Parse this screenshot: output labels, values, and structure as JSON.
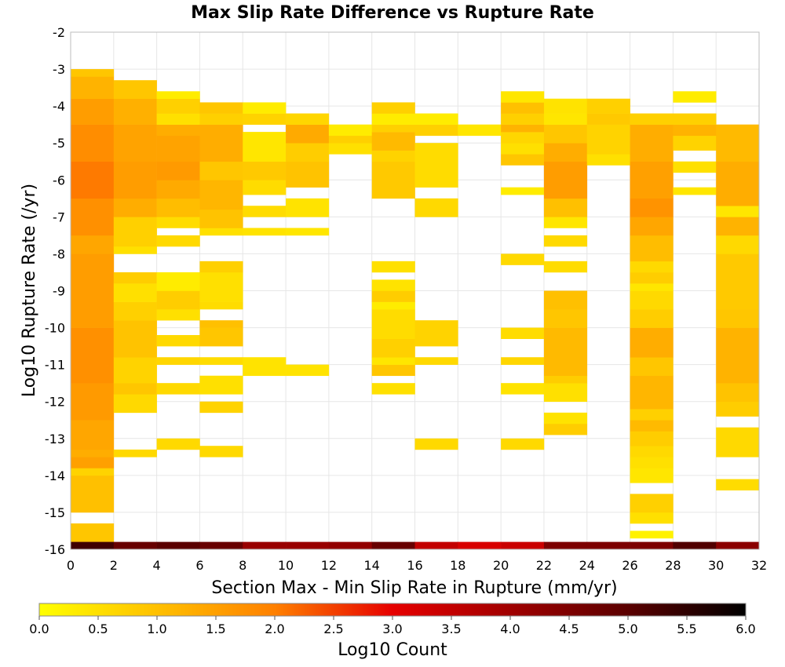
{
  "chart_data": {
    "type": "heatmap",
    "title": "Max Slip Rate Difference vs Rupture Rate",
    "xlabel": "Section Max - Min Slip Rate in Rupture (mm/yr)",
    "ylabel": "Log10 Rupture Rate (/yr)",
    "xlim": [
      0,
      32
    ],
    "ylim": [
      -16,
      -2
    ],
    "x_ticks": [
      0,
      2,
      4,
      6,
      8,
      10,
      12,
      14,
      16,
      18,
      20,
      22,
      24,
      26,
      28,
      30,
      32
    ],
    "y_ticks": [
      -2,
      -3,
      -4,
      -5,
      -6,
      -7,
      -8,
      -9,
      -10,
      -11,
      -12,
      -13,
      -14,
      -15,
      -16
    ],
    "grid": true,
    "x_bin_width": 2,
    "y_bin_height": 0.25,
    "colorbar": {
      "label": "Log10 Count",
      "min": 0.0,
      "max": 6.0,
      "ticks": [
        "0.0",
        "0.5",
        "1.0",
        "1.5",
        "2.0",
        "2.5",
        "3.0",
        "3.5",
        "4.0",
        "4.5",
        "5.0",
        "5.5",
        "6.0"
      ],
      "stops": [
        {
          "v": 0.0,
          "color": "#ffff00"
        },
        {
          "v": 1.0,
          "color": "#ffc000"
        },
        {
          "v": 2.0,
          "color": "#ff8000"
        },
        {
          "v": 3.0,
          "color": "#e60000"
        },
        {
          "v": 4.0,
          "color": "#a00000"
        },
        {
          "v": 5.0,
          "color": "#5a0000"
        },
        {
          "v": 6.0,
          "color": "#000000"
        }
      ]
    },
    "columns": [
      {
        "x0": 0,
        "runs": [
          {
            "y0": -15.8,
            "y1": -15.3,
            "v": 0.9
          },
          {
            "y0": -15.0,
            "y1": -14.0,
            "v": 1.0
          },
          {
            "y0": -14.0,
            "y1": -13.8,
            "v": 0.7
          },
          {
            "y0": -13.8,
            "y1": -13.5,
            "v": 1.5
          },
          {
            "y0": -13.5,
            "y1": -13.3,
            "v": 1.3
          },
          {
            "y0": -13.3,
            "y1": -12.5,
            "v": 1.4
          },
          {
            "y0": -12.5,
            "y1": -11.5,
            "v": 1.6
          },
          {
            "y0": -11.5,
            "y1": -10.0,
            "v": 1.75
          },
          {
            "y0": -10.0,
            "y1": -8.0,
            "v": 1.55
          },
          {
            "y0": -8.0,
            "y1": -7.5,
            "v": 1.4
          },
          {
            "y0": -7.5,
            "y1": -6.5,
            "v": 1.75
          },
          {
            "y0": -6.5,
            "y1": -5.5,
            "v": 2.05
          },
          {
            "y0": -5.5,
            "y1": -4.5,
            "v": 1.8
          },
          {
            "y0": -4.5,
            "y1": -3.8,
            "v": 1.55
          },
          {
            "y0": -3.8,
            "y1": -3.2,
            "v": 1.2
          },
          {
            "y0": -3.2,
            "y1": -3.0,
            "v": 0.9
          }
        ]
      },
      {
        "x0": 2,
        "runs": [
          {
            "y0": -13.5,
            "y1": -13.3,
            "v": 0.6
          },
          {
            "y0": -12.3,
            "y1": -11.8,
            "v": 0.6
          },
          {
            "y0": -11.8,
            "y1": -11.5,
            "v": 0.9
          },
          {
            "y0": -11.5,
            "y1": -10.8,
            "v": 0.7
          },
          {
            "y0": -10.8,
            "y1": -9.8,
            "v": 0.95
          },
          {
            "y0": -9.8,
            "y1": -9.3,
            "v": 0.75
          },
          {
            "y0": -9.3,
            "y1": -8.8,
            "v": 0.5
          },
          {
            "y0": -8.8,
            "y1": -8.5,
            "v": 0.8
          },
          {
            "y0": -8.0,
            "y1": -7.8,
            "v": 0.5
          },
          {
            "y0": -7.8,
            "y1": -7.0,
            "v": 0.75
          },
          {
            "y0": -7.0,
            "y1": -6.5,
            "v": 1.3
          },
          {
            "y0": -6.5,
            "y1": -5.5,
            "v": 1.55
          },
          {
            "y0": -5.5,
            "y1": -4.5,
            "v": 1.45
          },
          {
            "y0": -4.5,
            "y1": -3.8,
            "v": 1.25
          },
          {
            "y0": -3.8,
            "y1": -3.3,
            "v": 0.9
          }
        ]
      },
      {
        "x0": 4,
        "runs": [
          {
            "y0": -13.3,
            "y1": -13.0,
            "v": 0.6
          },
          {
            "y0": -11.8,
            "y1": -11.5,
            "v": 0.6
          },
          {
            "y0": -11.0,
            "y1": -10.8,
            "v": 0.65
          },
          {
            "y0": -10.5,
            "y1": -10.2,
            "v": 0.6
          },
          {
            "y0": -9.8,
            "y1": -9.5,
            "v": 0.5
          },
          {
            "y0": -9.5,
            "y1": -9.0,
            "v": 0.8
          },
          {
            "y0": -9.0,
            "y1": -8.5,
            "v": 0.3
          },
          {
            "y0": -7.8,
            "y1": -7.5,
            "v": 0.6
          },
          {
            "y0": -7.3,
            "y1": -7.0,
            "v": 0.55
          },
          {
            "y0": -7.0,
            "y1": -6.5,
            "v": 1.05
          },
          {
            "y0": -6.5,
            "y1": -6.0,
            "v": 1.35
          },
          {
            "y0": -6.0,
            "y1": -5.5,
            "v": 1.6
          },
          {
            "y0": -5.5,
            "y1": -4.8,
            "v": 1.45
          },
          {
            "y0": -4.8,
            "y1": -4.5,
            "v": 1.3
          },
          {
            "y0": -4.5,
            "y1": -4.2,
            "v": 0.5
          },
          {
            "y0": -4.2,
            "y1": -3.8,
            "v": 0.75
          },
          {
            "y0": -3.8,
            "y1": -3.6,
            "v": 0.3
          }
        ]
      },
      {
        "x0": 6,
        "runs": [
          {
            "y0": -13.5,
            "y1": -13.2,
            "v": 0.6
          },
          {
            "y0": -12.3,
            "y1": -12.0,
            "v": 0.7
          },
          {
            "y0": -11.8,
            "y1": -11.3,
            "v": 0.5
          },
          {
            "y0": -11.0,
            "y1": -10.8,
            "v": 0.55
          },
          {
            "y0": -10.5,
            "y1": -10.0,
            "v": 0.9
          },
          {
            "y0": -10.0,
            "y1": -9.8,
            "v": 1.0
          },
          {
            "y0": -9.5,
            "y1": -9.3,
            "v": 0.55
          },
          {
            "y0": -9.3,
            "y1": -8.5,
            "v": 0.5
          },
          {
            "y0": -8.5,
            "y1": -8.2,
            "v": 0.75
          },
          {
            "y0": -7.5,
            "y1": -7.3,
            "v": 0.5
          },
          {
            "y0": -7.3,
            "y1": -6.8,
            "v": 0.95
          },
          {
            "y0": -6.8,
            "y1": -6.0,
            "v": 1.15
          },
          {
            "y0": -6.0,
            "y1": -5.5,
            "v": 0.9
          },
          {
            "y0": -5.5,
            "y1": -4.5,
            "v": 1.3
          },
          {
            "y0": -4.5,
            "y1": -4.2,
            "v": 0.75
          },
          {
            "y0": -4.2,
            "y1": -3.9,
            "v": 0.9
          }
        ]
      },
      {
        "x0": 8,
        "runs": [
          {
            "y0": -11.3,
            "y1": -10.8,
            "v": 0.45
          },
          {
            "y0": -7.5,
            "y1": -7.3,
            "v": 0.45
          },
          {
            "y0": -7.0,
            "y1": -6.7,
            "v": 0.55
          },
          {
            "y0": -6.4,
            "y1": -6.0,
            "v": 0.55
          },
          {
            "y0": -6.0,
            "y1": -5.5,
            "v": 0.85
          },
          {
            "y0": -5.5,
            "y1": -4.7,
            "v": 0.4
          },
          {
            "y0": -4.5,
            "y1": -4.2,
            "v": 0.7
          },
          {
            "y0": -4.2,
            "y1": -3.9,
            "v": 0.3
          }
        ]
      },
      {
        "x0": 10,
        "runs": [
          {
            "y0": -11.3,
            "y1": -11.0,
            "v": 0.45
          },
          {
            "y0": -7.5,
            "y1": -7.3,
            "v": 0.4
          },
          {
            "y0": -7.0,
            "y1": -6.5,
            "v": 0.45
          },
          {
            "y0": -6.2,
            "y1": -5.5,
            "v": 0.95
          },
          {
            "y0": -5.5,
            "y1": -5.0,
            "v": 0.8
          },
          {
            "y0": -5.0,
            "y1": -4.5,
            "v": 1.35
          },
          {
            "y0": -4.5,
            "y1": -4.2,
            "v": 0.65
          }
        ]
      },
      {
        "x0": 12,
        "runs": [
          {
            "y0": -5.3,
            "y1": -5.0,
            "v": 0.5
          },
          {
            "y0": -5.0,
            "y1": -4.8,
            "v": 0.75
          },
          {
            "y0": -4.8,
            "y1": -4.5,
            "v": 0.3
          }
        ]
      },
      {
        "x0": 14,
        "runs": [
          {
            "y0": -11.8,
            "y1": -11.5,
            "v": 0.5
          },
          {
            "y0": -11.3,
            "y1": -11.0,
            "v": 0.9
          },
          {
            "y0": -11.0,
            "y1": -10.8,
            "v": 0.4
          },
          {
            "y0": -10.8,
            "y1": -10.3,
            "v": 0.75
          },
          {
            "y0": -10.3,
            "y1": -9.5,
            "v": 0.55
          },
          {
            "y0": -9.5,
            "y1": -9.3,
            "v": 0.3
          },
          {
            "y0": -9.3,
            "y1": -9.0,
            "v": 0.8
          },
          {
            "y0": -9.0,
            "y1": -8.7,
            "v": 0.45
          },
          {
            "y0": -8.5,
            "y1": -8.2,
            "v": 0.5
          },
          {
            "y0": -6.5,
            "y1": -5.5,
            "v": 0.85
          },
          {
            "y0": -5.5,
            "y1": -5.2,
            "v": 0.7
          },
          {
            "y0": -5.2,
            "y1": -4.7,
            "v": 1.1
          },
          {
            "y0": -4.7,
            "y1": -4.5,
            "v": 0.75
          },
          {
            "y0": -4.5,
            "y1": -4.2,
            "v": 0.3
          },
          {
            "y0": -4.2,
            "y1": -3.9,
            "v": 0.75
          }
        ]
      },
      {
        "x0": 16,
        "runs": [
          {
            "y0": -13.3,
            "y1": -13.0,
            "v": 0.6
          },
          {
            "y0": -11.0,
            "y1": -10.8,
            "v": 0.6
          },
          {
            "y0": -10.5,
            "y1": -9.8,
            "v": 0.7
          },
          {
            "y0": -7.0,
            "y1": -6.5,
            "v": 0.6
          },
          {
            "y0": -6.2,
            "y1": -5.0,
            "v": 0.55
          },
          {
            "y0": -4.8,
            "y1": -4.5,
            "v": 0.75
          },
          {
            "y0": -4.5,
            "y1": -4.2,
            "v": 0.3
          }
        ]
      },
      {
        "x0": 18,
        "runs": [
          {
            "y0": -4.8,
            "y1": -4.5,
            "v": 0.4
          }
        ]
      },
      {
        "x0": 20,
        "runs": [
          {
            "y0": -13.3,
            "y1": -13.0,
            "v": 0.6
          },
          {
            "y0": -11.8,
            "y1": -11.5,
            "v": 0.45
          },
          {
            "y0": -11.0,
            "y1": -10.8,
            "v": 0.65
          },
          {
            "y0": -10.3,
            "y1": -10.0,
            "v": 0.55
          },
          {
            "y0": -8.3,
            "y1": -8.0,
            "v": 0.6
          },
          {
            "y0": -6.4,
            "y1": -6.2,
            "v": 0.3
          },
          {
            "y0": -5.6,
            "y1": -5.3,
            "v": 0.9
          },
          {
            "y0": -5.3,
            "y1": -5.0,
            "v": 0.5
          },
          {
            "y0": -5.0,
            "y1": -4.7,
            "v": 0.65
          },
          {
            "y0": -4.7,
            "y1": -4.5,
            "v": 1.2
          },
          {
            "y0": -4.5,
            "y1": -4.2,
            "v": 0.75
          },
          {
            "y0": -4.2,
            "y1": -3.9,
            "v": 1.0
          },
          {
            "y0": -3.9,
            "y1": -3.6,
            "v": 0.4
          }
        ]
      },
      {
        "x0": 22,
        "runs": [
          {
            "y0": -12.9,
            "y1": -12.6,
            "v": 0.8
          },
          {
            "y0": -12.6,
            "y1": -12.3,
            "v": 0.45
          },
          {
            "y0": -12.0,
            "y1": -11.5,
            "v": 0.5
          },
          {
            "y0": -11.5,
            "y1": -11.3,
            "v": 0.8
          },
          {
            "y0": -11.3,
            "y1": -10.0,
            "v": 1.1
          },
          {
            "y0": -10.0,
            "y1": -9.5,
            "v": 0.9
          },
          {
            "y0": -9.5,
            "y1": -9.0,
            "v": 1.0
          },
          {
            "y0": -8.5,
            "y1": -8.2,
            "v": 0.55
          },
          {
            "y0": -7.8,
            "y1": -7.5,
            "v": 0.6
          },
          {
            "y0": -7.3,
            "y1": -7.0,
            "v": 0.4
          },
          {
            "y0": -7.0,
            "y1": -6.5,
            "v": 1.0
          },
          {
            "y0": -6.5,
            "y1": -5.5,
            "v": 1.55
          },
          {
            "y0": -5.5,
            "y1": -5.0,
            "v": 1.3
          },
          {
            "y0": -5.0,
            "y1": -4.5,
            "v": 0.9
          },
          {
            "y0": -4.5,
            "y1": -4.2,
            "v": 0.4
          },
          {
            "y0": -4.2,
            "y1": -3.8,
            "v": 0.45
          }
        ]
      },
      {
        "x0": 24,
        "runs": [
          {
            "y0": -5.6,
            "y1": -5.3,
            "v": 0.5
          },
          {
            "y0": -5.3,
            "y1": -4.5,
            "v": 0.7
          },
          {
            "y0": -4.5,
            "y1": -4.2,
            "v": 0.85
          },
          {
            "y0": -4.2,
            "y1": -3.8,
            "v": 0.75
          }
        ]
      },
      {
        "x0": 26,
        "runs": [
          {
            "y0": -15.7,
            "y1": -15.5,
            "v": 0.2
          },
          {
            "y0": -15.3,
            "y1": -15.0,
            "v": 0.5
          },
          {
            "y0": -15.0,
            "y1": -14.5,
            "v": 0.75
          },
          {
            "y0": -14.2,
            "y1": -13.8,
            "v": 0.4
          },
          {
            "y0": -13.8,
            "y1": -13.5,
            "v": 0.5
          },
          {
            "y0": -13.5,
            "y1": -13.2,
            "v": 0.6
          },
          {
            "y0": -13.2,
            "y1": -12.8,
            "v": 0.8
          },
          {
            "y0": -12.8,
            "y1": -12.5,
            "v": 1.1
          },
          {
            "y0": -12.5,
            "y1": -12.2,
            "v": 0.75
          },
          {
            "y0": -12.2,
            "y1": -11.3,
            "v": 1.15
          },
          {
            "y0": -11.3,
            "y1": -10.8,
            "v": 0.9
          },
          {
            "y0": -10.8,
            "y1": -10.0,
            "v": 1.3
          },
          {
            "y0": -10.0,
            "y1": -9.5,
            "v": 0.8
          },
          {
            "y0": -9.5,
            "y1": -9.0,
            "v": 0.6
          },
          {
            "y0": -9.0,
            "y1": -8.8,
            "v": 0.4
          },
          {
            "y0": -8.8,
            "y1": -8.5,
            "v": 0.8
          },
          {
            "y0": -8.5,
            "y1": -8.2,
            "v": 0.6
          },
          {
            "y0": -8.2,
            "y1": -7.5,
            "v": 1.05
          },
          {
            "y0": -7.5,
            "y1": -7.0,
            "v": 1.4
          },
          {
            "y0": -7.0,
            "y1": -6.5,
            "v": 1.7
          },
          {
            "y0": -6.5,
            "y1": -5.5,
            "v": 1.5
          },
          {
            "y0": -5.5,
            "y1": -4.5,
            "v": 1.3
          },
          {
            "y0": -4.5,
            "y1": -4.2,
            "v": 0.75
          }
        ]
      },
      {
        "x0": 28,
        "runs": [
          {
            "y0": -6.4,
            "y1": -6.2,
            "v": 0.4
          },
          {
            "y0": -5.8,
            "y1": -5.5,
            "v": 0.5
          },
          {
            "y0": -5.2,
            "y1": -4.8,
            "v": 0.7
          },
          {
            "y0": -4.8,
            "y1": -4.5,
            "v": 1.2
          },
          {
            "y0": -4.5,
            "y1": -4.2,
            "v": 0.75
          },
          {
            "y0": -3.9,
            "y1": -3.6,
            "v": 0.3
          }
        ]
      },
      {
        "x0": 30,
        "runs": [
          {
            "y0": -14.4,
            "y1": -14.1,
            "v": 0.55
          },
          {
            "y0": -13.5,
            "y1": -12.7,
            "v": 0.6
          },
          {
            "y0": -12.4,
            "y1": -12.0,
            "v": 0.8
          },
          {
            "y0": -12.0,
            "y1": -11.5,
            "v": 0.95
          },
          {
            "y0": -11.5,
            "y1": -10.0,
            "v": 1.2
          },
          {
            "y0": -10.0,
            "y1": -9.5,
            "v": 0.9
          },
          {
            "y0": -9.5,
            "y1": -8.0,
            "v": 0.85
          },
          {
            "y0": -8.0,
            "y1": -7.5,
            "v": 0.6
          },
          {
            "y0": -7.5,
            "y1": -7.0,
            "v": 1.2
          },
          {
            "y0": -7.0,
            "y1": -6.7,
            "v": 0.4
          },
          {
            "y0": -6.7,
            "y1": -5.5,
            "v": 1.3
          },
          {
            "y0": -5.5,
            "y1": -4.5,
            "v": 1.1
          }
        ]
      }
    ],
    "bottom_row": {
      "y0": -16.0,
      "y1": -15.8,
      "values": [
        5.3,
        4.8,
        5.0,
        4.8,
        4.1,
        4.1,
        4.2,
        4.8,
        3.5,
        3.2,
        3.4,
        4.5,
        4.5,
        4.5,
        5.1,
        4.3
      ]
    }
  }
}
